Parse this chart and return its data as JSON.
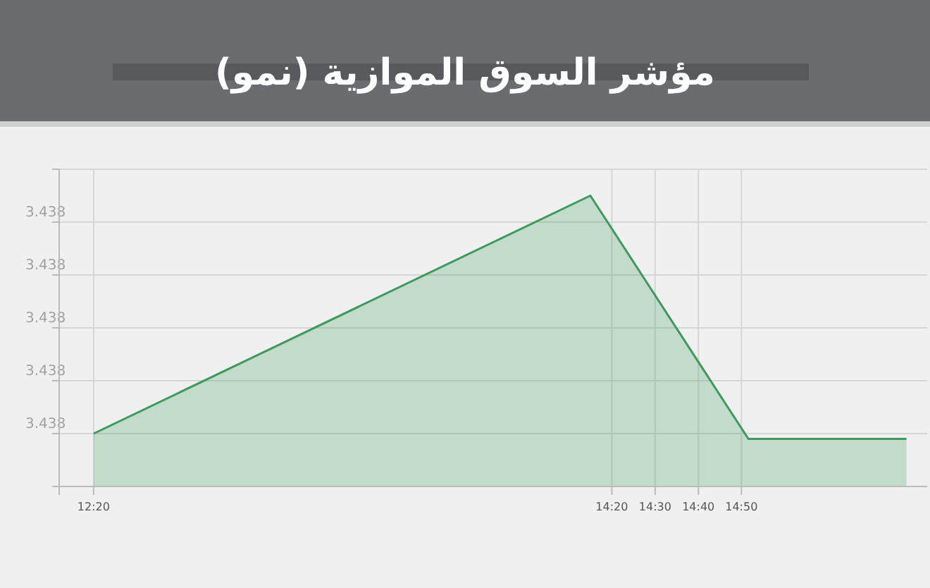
{
  "chart_data": {
    "type": "area",
    "title": "مؤشر السوق الموازية (نمو)",
    "x": [
      12.333,
      14.25,
      14.86,
      15.47
    ],
    "series": [
      {
        "color": "#3d9a5c",
        "values": [
          3.4376,
          3.4385,
          3.43758,
          3.43758
        ]
      }
    ],
    "xlim": [
      12.2,
      15.55
    ],
    "xticks": [
      {
        "value": 12.333,
        "label": "12:20"
      },
      {
        "value": 14.333,
        "label": "14:20"
      },
      {
        "value": 14.5,
        "label": "14:30"
      },
      {
        "value": 14.667,
        "label": "14:40"
      },
      {
        "value": 14.833,
        "label": "14:50"
      }
    ],
    "ylim": [
      3.4374,
      3.4386
    ],
    "yticks": [
      {
        "value": 3.4376,
        "label": "3.438"
      },
      {
        "value": 3.4378,
        "label": "3.438"
      },
      {
        "value": 3.438,
        "label": "3.438"
      },
      {
        "value": 3.4382,
        "label": "3.438"
      },
      {
        "value": 3.4384,
        "label": "3.438"
      },
      {
        "value": 3.4386,
        "label": null
      }
    ],
    "grid": true
  }
}
